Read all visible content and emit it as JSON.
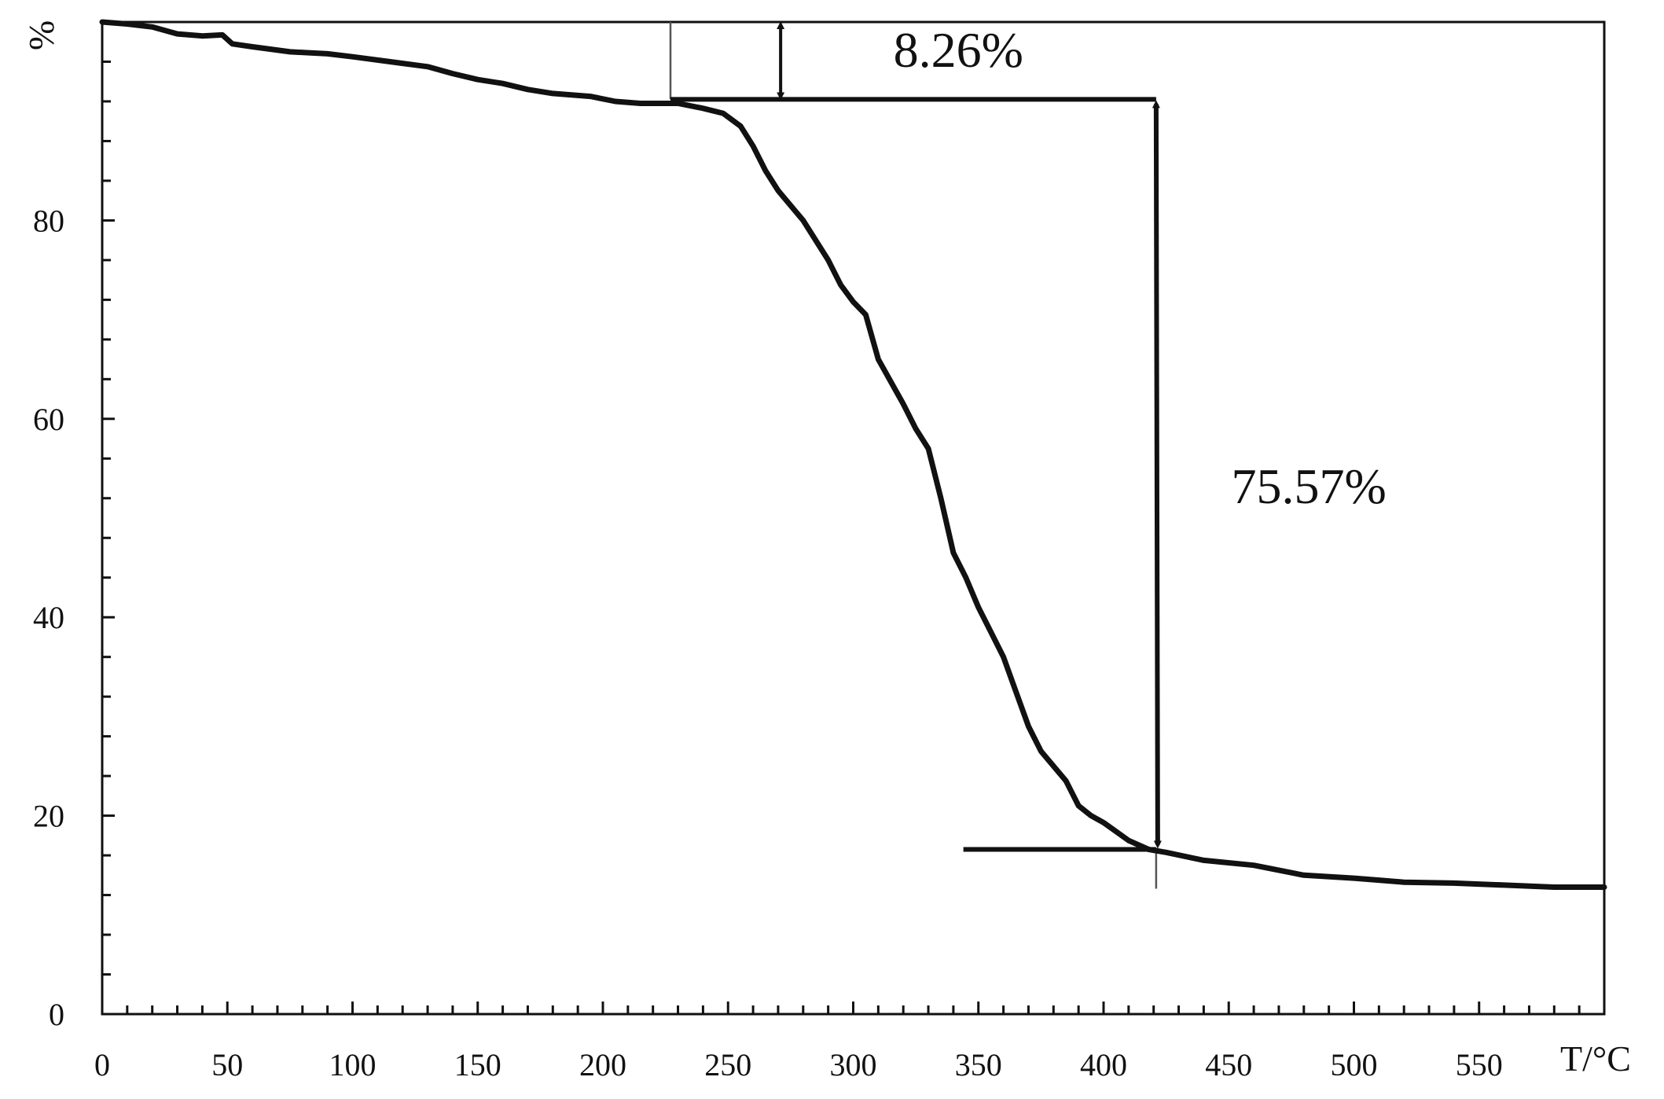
{
  "chart_data": {
    "type": "line",
    "title": "",
    "xlabel": "T/°C",
    "ylabel": "%",
    "xlim": [
      0,
      600
    ],
    "ylim": [
      0,
      100
    ],
    "x_ticks": [
      0,
      50,
      100,
      150,
      200,
      250,
      300,
      350,
      400,
      450,
      500,
      550
    ],
    "x_tick_labels": [
      "0",
      "50",
      "100",
      "150",
      "200",
      "250",
      "300",
      "350",
      "400",
      "450",
      "500",
      "550"
    ],
    "y_ticks": [
      0,
      20,
      40,
      60,
      80
    ],
    "y_tick_labels": [
      "0",
      "20",
      "40",
      "60",
      "80"
    ],
    "grid": false,
    "series": [
      {
        "x": [
          0,
          10,
          20,
          30,
          40,
          48,
          52,
          60,
          75,
          90,
          100,
          115,
          130,
          140,
          150,
          160,
          170,
          180,
          195,
          205,
          215,
          225,
          230,
          240,
          248,
          255,
          260,
          265,
          270,
          280,
          290,
          295,
          300,
          305,
          310,
          320,
          325,
          330,
          335,
          340,
          345,
          350,
          355,
          360,
          365,
          370,
          375,
          380,
          385,
          390,
          395,
          400,
          410,
          418,
          425,
          440,
          460,
          480,
          500,
          510,
          520,
          540,
          560,
          580,
          590,
          600
        ],
        "y": [
          100,
          99.8,
          99.5,
          98.8,
          98.6,
          98.7,
          97.8,
          97.5,
          97.0,
          96.8,
          96.5,
          96.0,
          95.5,
          94.8,
          94.2,
          93.8,
          93.2,
          92.8,
          92.5,
          92.0,
          91.8,
          91.8,
          91.8,
          91.3,
          90.8,
          89.5,
          87.5,
          85,
          83,
          80,
          76,
          73.5,
          71.8,
          70.5,
          66,
          61.5,
          59,
          57,
          52,
          46.5,
          44,
          41,
          38.5,
          36,
          32.5,
          29,
          26.5,
          25,
          23.5,
          21,
          20,
          19.3,
          17.5,
          16.6,
          16.3,
          15.5,
          15.0,
          14.0,
          13.7,
          13.5,
          13.3,
          13.2,
          13.0,
          12.8,
          12.8,
          12.8
        ]
      }
    ],
    "markers": {
      "onset_x": 227,
      "end_x": 421,
      "upper_level": 92.2,
      "lower_level": 16.6,
      "end_line_start_x": 344,
      "small_arrow_x": 271
    },
    "annotations": [
      {
        "text": "8.26%",
        "x": 342,
        "y": 95.5
      },
      {
        "text": "75.57%",
        "x": 482,
        "y": 51.5
      }
    ]
  }
}
